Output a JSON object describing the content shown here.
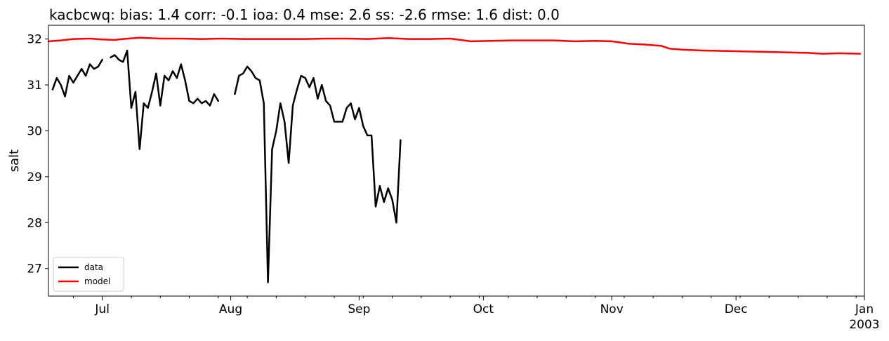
{
  "chart_data": {
    "type": "line",
    "title": "kacbcwq: bias: 1.4  corr: -0.1  ioa: 0.4  mse: 2.6  ss: -2.6  rmse: 1.6  dist: 0.0",
    "xlabel": "",
    "ylabel": "salt",
    "xlim": [
      "2002-06-18",
      "2003-01-01"
    ],
    "ylim": [
      26.4,
      32.3
    ],
    "grid": false,
    "legend_position": "lower-left",
    "x_ticks": [
      {
        "date": "2002-07-01",
        "label": "Jul"
      },
      {
        "date": "2002-08-01",
        "label": "Aug"
      },
      {
        "date": "2002-09-01",
        "label": "Sep"
      },
      {
        "date": "2002-10-01",
        "label": "Oct"
      },
      {
        "date": "2002-11-01",
        "label": "Nov"
      },
      {
        "date": "2002-12-01",
        "label": "Dec"
      },
      {
        "date": "2003-01-01",
        "label": "Jan"
      }
    ],
    "x_year_label": "2003",
    "y_ticks": [
      27,
      28,
      29,
      30,
      31,
      32
    ],
    "series": [
      {
        "name": "data",
        "color": "#000000",
        "segments": [
          [
            [
              "2002-06-19",
              30.9
            ],
            [
              "2002-06-20",
              31.15
            ],
            [
              "2002-06-21",
              31.0
            ],
            [
              "2002-06-22",
              30.75
            ],
            [
              "2002-06-23",
              31.2
            ],
            [
              "2002-06-24",
              31.05
            ],
            [
              "2002-06-25",
              31.2
            ],
            [
              "2002-06-26",
              31.35
            ],
            [
              "2002-06-27",
              31.2
            ],
            [
              "2002-06-28",
              31.45
            ],
            [
              "2002-06-29",
              31.35
            ],
            [
              "2002-06-30",
              31.4
            ],
            [
              "2002-07-01",
              31.55
            ]
          ],
          [
            [
              "2002-07-03",
              31.6
            ],
            [
              "2002-07-04",
              31.65
            ],
            [
              "2002-07-05",
              31.55
            ],
            [
              "2002-07-06",
              31.5
            ],
            [
              "2002-07-07",
              31.75
            ],
            [
              "2002-07-08",
              30.5
            ],
            [
              "2002-07-09",
              30.85
            ],
            [
              "2002-07-10",
              29.6
            ],
            [
              "2002-07-11",
              30.6
            ],
            [
              "2002-07-12",
              30.5
            ],
            [
              "2002-07-13",
              30.85
            ],
            [
              "2002-07-14",
              31.25
            ],
            [
              "2002-07-15",
              30.55
            ],
            [
              "2002-07-16",
              31.2
            ],
            [
              "2002-07-17",
              31.1
            ],
            [
              "2002-07-18",
              31.3
            ],
            [
              "2002-07-19",
              31.15
            ],
            [
              "2002-07-20",
              31.45
            ],
            [
              "2002-07-21",
              31.1
            ],
            [
              "2002-07-22",
              30.65
            ],
            [
              "2002-07-23",
              30.6
            ],
            [
              "2002-07-24",
              30.7
            ],
            [
              "2002-07-25",
              30.6
            ],
            [
              "2002-07-26",
              30.65
            ],
            [
              "2002-07-27",
              30.55
            ],
            [
              "2002-07-28",
              30.8
            ],
            [
              "2002-07-29",
              30.65
            ]
          ],
          [
            [
              "2002-08-02",
              30.8
            ],
            [
              "2002-08-03",
              31.2
            ],
            [
              "2002-08-04",
              31.25
            ],
            [
              "2002-08-05",
              31.4
            ],
            [
              "2002-08-06",
              31.3
            ],
            [
              "2002-08-07",
              31.15
            ],
            [
              "2002-08-08",
              31.1
            ],
            [
              "2002-08-09",
              30.6
            ],
            [
              "2002-08-10",
              26.7
            ],
            [
              "2002-08-11",
              29.6
            ],
            [
              "2002-08-12",
              30.0
            ],
            [
              "2002-08-13",
              30.6
            ],
            [
              "2002-08-14",
              30.2
            ],
            [
              "2002-08-15",
              29.3
            ],
            [
              "2002-08-16",
              30.55
            ],
            [
              "2002-08-17",
              30.9
            ],
            [
              "2002-08-18",
              31.2
            ],
            [
              "2002-08-19",
              31.15
            ],
            [
              "2002-08-20",
              30.95
            ],
            [
              "2002-08-21",
              31.15
            ],
            [
              "2002-08-22",
              30.7
            ],
            [
              "2002-08-23",
              31.0
            ],
            [
              "2002-08-24",
              30.65
            ],
            [
              "2002-08-25",
              30.55
            ],
            [
              "2002-08-26",
              30.2
            ],
            [
              "2002-08-27",
              30.2
            ],
            [
              "2002-08-28",
              30.2
            ],
            [
              "2002-08-29",
              30.5
            ],
            [
              "2002-08-30",
              30.6
            ],
            [
              "2002-08-31",
              30.25
            ],
            [
              "2002-09-01",
              30.5
            ],
            [
              "2002-09-02",
              30.1
            ],
            [
              "2002-09-03",
              29.9
            ],
            [
              "2002-09-04",
              29.9
            ],
            [
              "2002-09-05",
              28.35
            ],
            [
              "2002-09-06",
              28.8
            ],
            [
              "2002-09-07",
              28.45
            ],
            [
              "2002-09-08",
              28.75
            ],
            [
              "2002-09-09",
              28.5
            ],
            [
              "2002-09-10",
              28.0
            ],
            [
              "2002-09-11",
              29.8
            ]
          ]
        ]
      },
      {
        "name": "model",
        "color": "#ff0000",
        "segments": [
          [
            [
              "2002-06-18",
              31.95
            ],
            [
              "2002-06-21",
              31.97
            ],
            [
              "2002-06-24",
              32.0
            ],
            [
              "2002-06-28",
              32.01
            ],
            [
              "2002-07-01",
              31.99
            ],
            [
              "2002-07-04",
              31.98
            ],
            [
              "2002-07-06",
              32.0
            ],
            [
              "2002-07-10",
              32.03
            ],
            [
              "2002-07-15",
              32.01
            ],
            [
              "2002-07-20",
              32.01
            ],
            [
              "2002-07-25",
              32.0
            ],
            [
              "2002-07-30",
              32.01
            ],
            [
              "2002-08-04",
              32.0
            ],
            [
              "2002-08-09",
              32.0
            ],
            [
              "2002-08-14",
              32.0
            ],
            [
              "2002-08-19",
              32.0
            ],
            [
              "2002-08-24",
              32.01
            ],
            [
              "2002-08-29",
              32.01
            ],
            [
              "2002-09-03",
              32.0
            ],
            [
              "2002-09-08",
              32.02
            ],
            [
              "2002-09-13",
              32.0
            ],
            [
              "2002-09-18",
              32.0
            ],
            [
              "2002-09-23",
              32.01
            ],
            [
              "2002-09-28",
              31.95
            ],
            [
              "2002-10-03",
              31.96
            ],
            [
              "2002-10-08",
              31.97
            ],
            [
              "2002-10-13",
              31.97
            ],
            [
              "2002-10-18",
              31.97
            ],
            [
              "2002-10-23",
              31.95
            ],
            [
              "2002-10-28",
              31.96
            ],
            [
              "2002-11-01",
              31.95
            ],
            [
              "2002-11-05",
              31.9
            ],
            [
              "2002-11-09",
              31.88
            ],
            [
              "2002-11-13",
              31.85
            ],
            [
              "2002-11-15",
              31.79
            ],
            [
              "2002-11-18",
              31.77
            ],
            [
              "2002-11-23",
              31.75
            ],
            [
              "2002-11-28",
              31.74
            ],
            [
              "2002-12-03",
              31.73
            ],
            [
              "2002-12-08",
              31.72
            ],
            [
              "2002-12-13",
              31.71
            ],
            [
              "2002-12-18",
              31.7
            ],
            [
              "2002-12-22",
              31.68
            ],
            [
              "2002-12-26",
              31.69
            ],
            [
              "2002-12-31",
              31.68
            ]
          ]
        ]
      }
    ]
  }
}
